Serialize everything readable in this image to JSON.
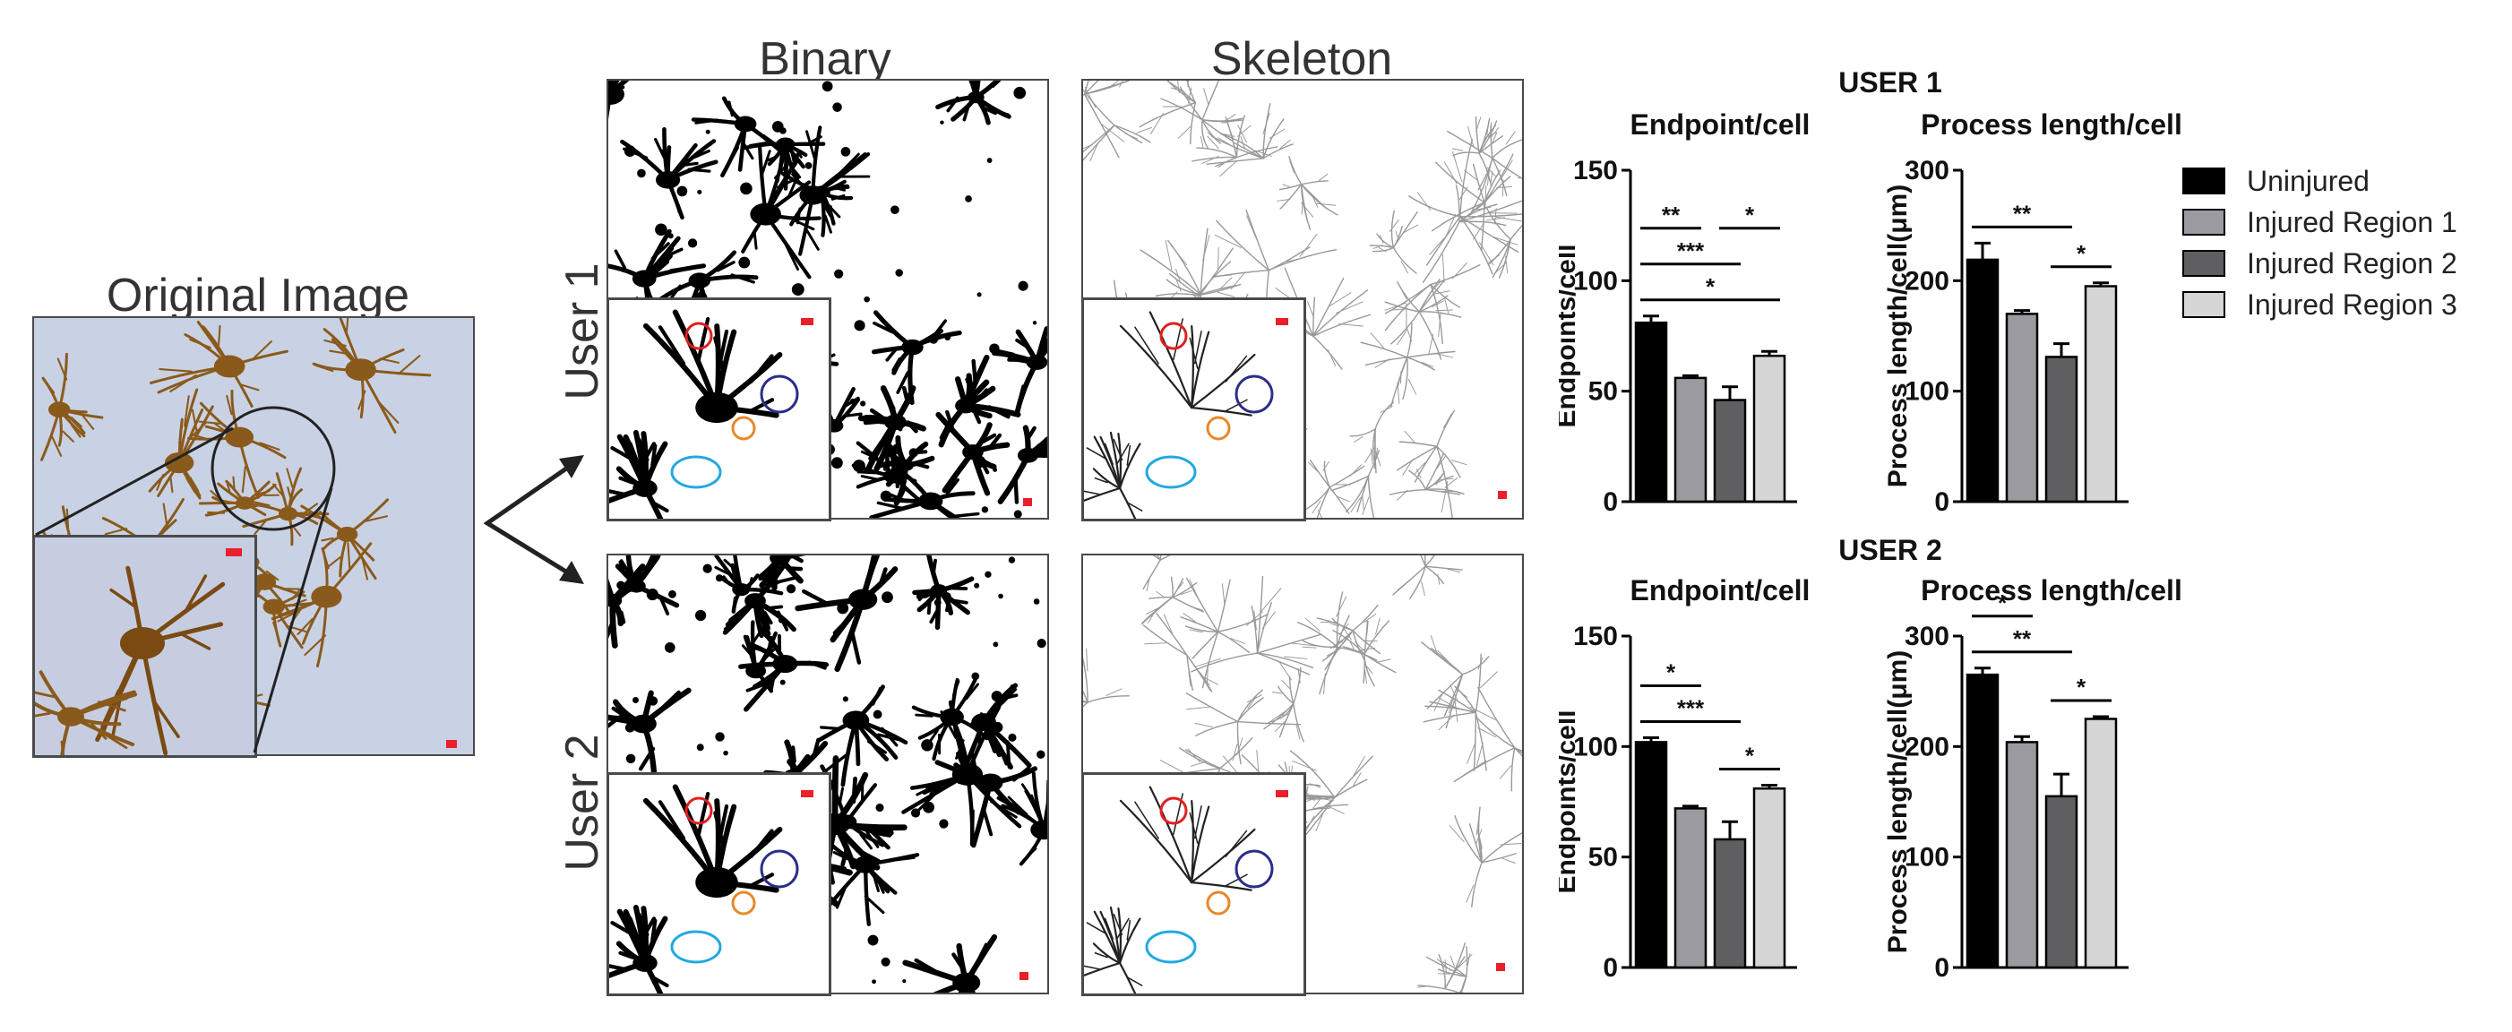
{
  "figure": {
    "original_title": "Original Image",
    "binary_title": "Binary",
    "skeleton_title": "Skeleton",
    "user1_row_label": "User 1",
    "user2_row_label": "User 2",
    "user1_chart_heading": "USER 1",
    "user2_chart_heading": "USER 2"
  },
  "legend": [
    {
      "label": "Uninjured",
      "color": "#000000"
    },
    {
      "label": "Injured Region 1",
      "color": "#9a9aa0"
    },
    {
      "label": "Injured Region 2",
      "color": "#5f5f62"
    },
    {
      "label": "Injured Region 3",
      "color": "#d6d6d6"
    }
  ],
  "chart_data": [
    {
      "type": "bar",
      "group": "USER 1",
      "title": "Endpoint/cell",
      "ylabel": "Endpoints/cell",
      "ylim": [
        0,
        150
      ],
      "yticks": [
        0,
        50,
        100,
        150
      ],
      "categories": [
        "Uninjured",
        "Injured Region 1",
        "Injured Region 2",
        "Injured Region 3"
      ],
      "values": [
        81,
        56,
        46,
        66
      ],
      "errors": [
        3,
        1,
        6,
        2
      ],
      "significance": [
        {
          "from": 0,
          "to": 3,
          "label": "*"
        },
        {
          "from": 0,
          "to": 2,
          "label": "***"
        },
        {
          "from": 0,
          "to": 1,
          "label": "**"
        },
        {
          "from": 2,
          "to": 3,
          "label": "*"
        }
      ]
    },
    {
      "type": "bar",
      "group": "USER 1",
      "title": "Process length/cell",
      "ylabel": "Process length/cell(μm)",
      "ylim": [
        0,
        300
      ],
      "yticks": [
        0,
        100,
        200,
        300
      ],
      "categories": [
        "Uninjured",
        "Injured Region 1",
        "Injured Region 2",
        "Injured Region 3"
      ],
      "values": [
        219,
        170,
        131,
        195
      ],
      "errors": [
        15,
        3,
        12,
        3
      ],
      "significance": [
        {
          "from": 0,
          "to": 2,
          "label": "**"
        },
        {
          "from": 2,
          "to": 3,
          "label": "*"
        }
      ]
    },
    {
      "type": "bar",
      "group": "USER 2",
      "title": "Endpoint/cell",
      "ylabel": "Endpoints/cell",
      "ylim": [
        0,
        150
      ],
      "yticks": [
        0,
        50,
        100,
        150
      ],
      "categories": [
        "Uninjured",
        "Injured Region 1",
        "Injured Region 2",
        "Injured Region 3"
      ],
      "values": [
        102,
        72,
        58,
        81
      ],
      "errors": [
        2,
        1,
        8,
        1.5
      ],
      "significance": [
        {
          "from": 0,
          "to": 2,
          "label": "***"
        },
        {
          "from": 0,
          "to": 1,
          "label": "*"
        },
        {
          "from": 2,
          "to": 3,
          "label": "*"
        }
      ]
    },
    {
      "type": "bar",
      "group": "USER 2",
      "title": "Process length/cell",
      "ylabel": "Process length/cell(μm)",
      "ylim": [
        0,
        300
      ],
      "yticks": [
        0,
        100,
        200,
        300
      ],
      "categories": [
        "Uninjured",
        "Injured Region 1",
        "Injured Region 2",
        "Injured Region 3"
      ],
      "values": [
        265,
        204,
        155,
        225
      ],
      "errors": [
        6,
        5,
        20,
        2
      ],
      "significance": [
        {
          "from": 0,
          "to": 2,
          "label": "**"
        },
        {
          "from": 0,
          "to": 1,
          "label": "*"
        },
        {
          "from": 2,
          "to": 3,
          "label": "*"
        }
      ]
    }
  ]
}
